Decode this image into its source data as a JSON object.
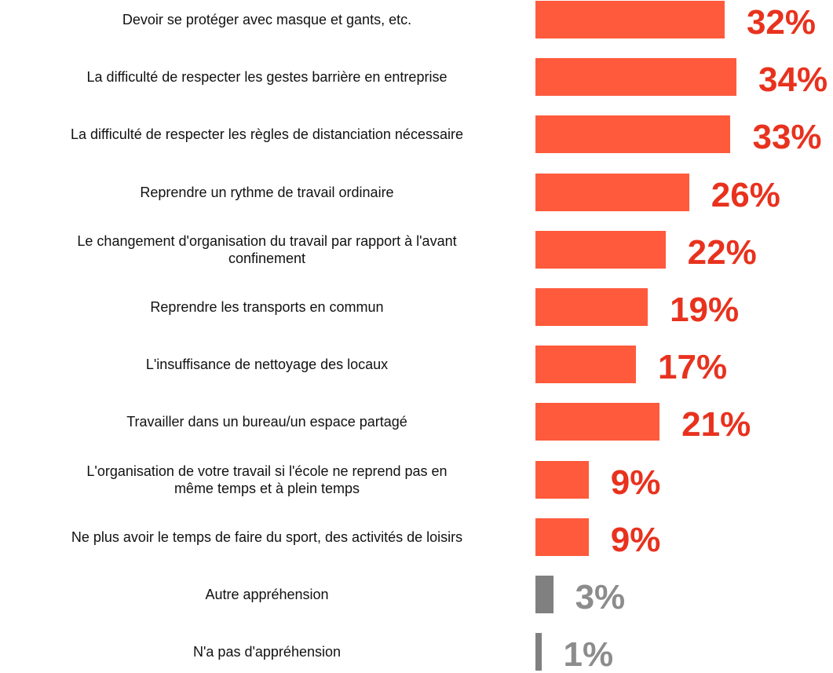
{
  "chart_data": {
    "type": "bar",
    "orientation": "horizontal",
    "categories": [
      "Devoir se protéger avec masque et gants, etc.",
      "La difficulté de respecter les gestes barrière en entreprise",
      "La difficulté de respecter les règles de distanciation nécessaire",
      "Reprendre un rythme de travail ordinaire",
      "Le changement d'organisation du travail par rapport à l'avant\nconfinement",
      "Reprendre les transports en commun",
      "L'insuffisance de nettoyage des locaux",
      "Travailler dans un bureau/un espace partagé",
      "L'organisation de votre travail si l'école ne reprend pas en\nmême temps et à plein temps",
      "Ne plus avoir le temps de faire du sport, des activités de loisirs",
      "Autre appréhension",
      "N'a pas d'appréhension"
    ],
    "values": [
      32,
      34,
      33,
      26,
      22,
      19,
      17,
      21,
      9,
      9,
      3,
      1
    ],
    "value_labels": [
      "32%",
      "34%",
      "33%",
      "26%",
      "22%",
      "19%",
      "17%",
      "21%",
      "9%",
      "9%",
      "3%",
      "1%"
    ],
    "colors": [
      "#ff5a3c",
      "#ff5a3c",
      "#ff5a3c",
      "#ff5a3c",
      "#ff5a3c",
      "#ff5a3c",
      "#ff5a3c",
      "#ff5a3c",
      "#ff5a3c",
      "#ff5a3c",
      "#808080",
      "#808080"
    ],
    "label_colors": [
      "#e8321e",
      "#e8321e",
      "#e8321e",
      "#e8321e",
      "#e8321e",
      "#e8321e",
      "#e8321e",
      "#e8321e",
      "#e8321e",
      "#e8321e",
      "#8c8c8c",
      "#8c8c8c"
    ]
  }
}
